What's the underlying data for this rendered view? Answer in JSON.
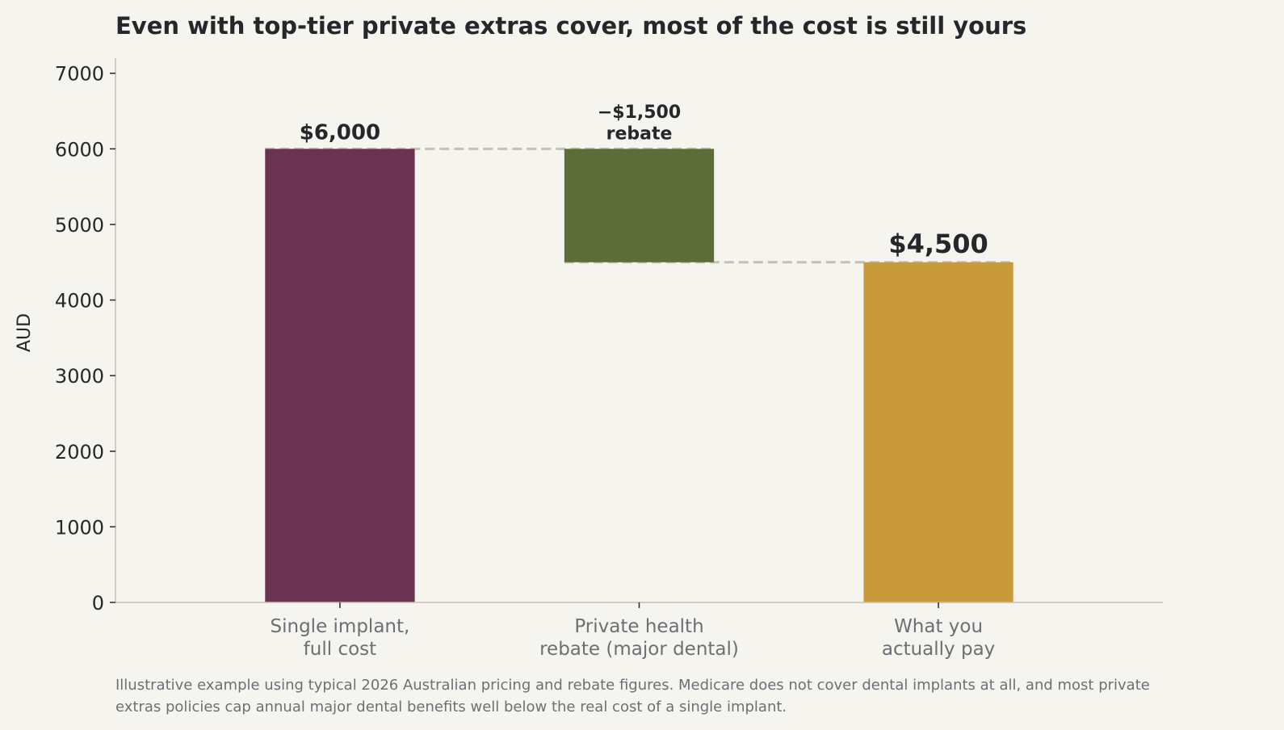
{
  "colors": {
    "background": "#f5f4ef",
    "axis": "#c7bfae",
    "connector": "#c9c0aa",
    "text": "#25282b",
    "muted": "#6b7075",
    "rebate_text": "#5c6b37"
  },
  "chart_data": {
    "type": "bar",
    "subtype": "waterfall",
    "title": "Even with top-tier private extras cover, most of the cost is still yours",
    "ylabel": "AUD",
    "xlabel": "",
    "ylim": [
      0,
      7200
    ],
    "yticks": [
      0,
      1000,
      2000,
      3000,
      4000,
      5000,
      6000,
      7000
    ],
    "grid": false,
    "bars": [
      {
        "label_lines": [
          "Single implant,",
          "full cost"
        ],
        "base": 0,
        "top": 6000,
        "color": "#6a3350",
        "value_label_lines": [
          "$6,000"
        ],
        "value_label_color": "#25282b",
        "value_label_size": 26
      },
      {
        "label_lines": [
          "Private health",
          "rebate (major dental)"
        ],
        "base": 4500,
        "top": 6000,
        "color": "#5c6d37",
        "value_label_lines": [
          "−$1,500",
          "rebate"
        ],
        "value_label_color": "#5c6b37",
        "value_label_size": 22
      },
      {
        "label_lines": [
          "What you",
          "actually pay"
        ],
        "base": 0,
        "top": 4500,
        "color": "#c89a3a",
        "value_label_lines": [
          "$4,500"
        ],
        "value_label_color": "#25282b",
        "value_label_size": 32
      }
    ],
    "connectors": [
      {
        "from": 0,
        "to": 1,
        "y": 6000
      },
      {
        "from": 1,
        "to": 2,
        "y": 4500
      }
    ]
  },
  "footnote_lines": [
    "Illustrative example using typical 2026 Australian pricing and rebate figures. Medicare does not cover dental implants at all, and most private",
    "extras policies cap annual major dental benefits well below the real cost of a single implant."
  ]
}
